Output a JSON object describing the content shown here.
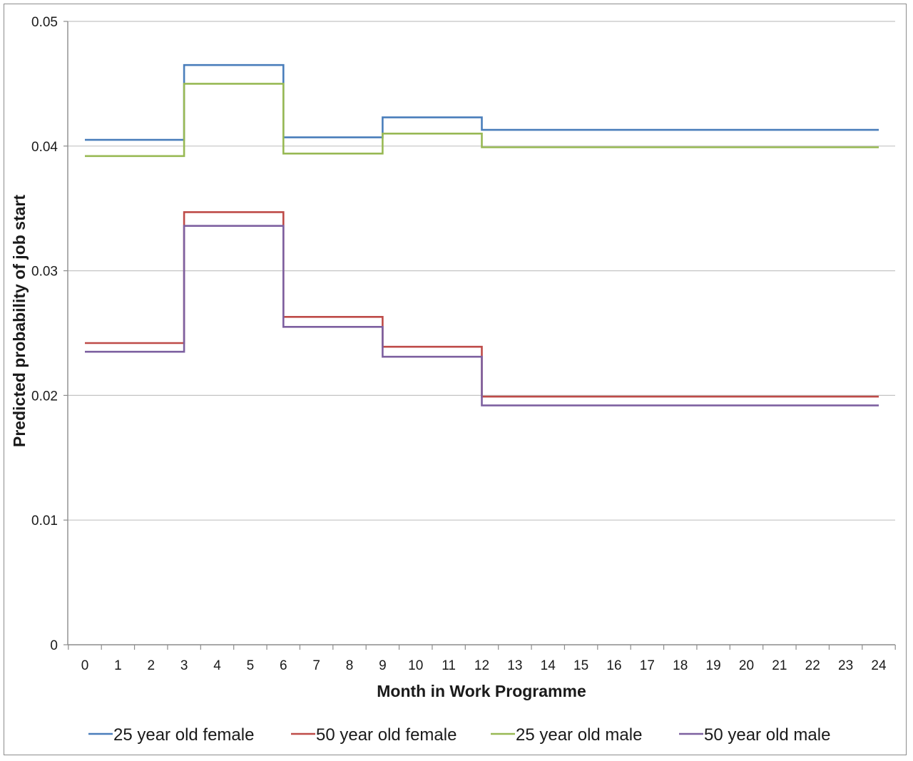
{
  "chart_data": {
    "type": "line",
    "step": true,
    "title": "",
    "xlabel": "Month in Work Programme",
    "ylabel": "Predicted probability of job start",
    "x_ticks": [
      "0",
      "1",
      "2",
      "3",
      "4",
      "5",
      "6",
      "7",
      "8",
      "9",
      "10",
      "11",
      "12",
      "13",
      "14",
      "15",
      "16",
      "17",
      "18",
      "19",
      "20",
      "21",
      "22",
      "23",
      "24"
    ],
    "xlim": [
      0,
      24
    ],
    "ylim": [
      0,
      0.05
    ],
    "y_ticks": [
      0,
      0.01,
      0.02,
      0.03,
      0.04,
      0.05
    ],
    "y_tick_labels": [
      "0",
      "0.01",
      "0.02",
      "0.03",
      "0.04",
      "0.05"
    ],
    "grid": "horizontal",
    "legend_position": "bottom",
    "series": [
      {
        "name": "25 year old female",
        "color": "#4a7ebb",
        "points": [
          [
            0,
            0.0405
          ],
          [
            3,
            0.0405
          ],
          [
            3,
            0.0465
          ],
          [
            6,
            0.0465
          ],
          [
            6,
            0.0407
          ],
          [
            9,
            0.0407
          ],
          [
            9,
            0.0423
          ],
          [
            12,
            0.0423
          ],
          [
            12,
            0.0413
          ],
          [
            24,
            0.0413
          ]
        ]
      },
      {
        "name": "50 year old female",
        "color": "#be4b48",
        "points": [
          [
            0,
            0.0242
          ],
          [
            3,
            0.0242
          ],
          [
            3,
            0.0347
          ],
          [
            6,
            0.0347
          ],
          [
            6,
            0.0263
          ],
          [
            9,
            0.0263
          ],
          [
            9,
            0.0239
          ],
          [
            12,
            0.0239
          ],
          [
            12,
            0.0199
          ],
          [
            24,
            0.0199
          ]
        ]
      },
      {
        "name": "25 year old male",
        "color": "#98b954",
        "points": [
          [
            0,
            0.0392
          ],
          [
            3,
            0.0392
          ],
          [
            3,
            0.045
          ],
          [
            6,
            0.045
          ],
          [
            6,
            0.0394
          ],
          [
            9,
            0.0394
          ],
          [
            9,
            0.041
          ],
          [
            12,
            0.041
          ],
          [
            12,
            0.0399
          ],
          [
            24,
            0.0399
          ]
        ]
      },
      {
        "name": "50 year old male",
        "color": "#7d60a0",
        "points": [
          [
            0,
            0.0235
          ],
          [
            3,
            0.0235
          ],
          [
            3,
            0.0336
          ],
          [
            6,
            0.0336
          ],
          [
            6,
            0.0255
          ],
          [
            9,
            0.0255
          ],
          [
            9,
            0.0231
          ],
          [
            12,
            0.0231
          ],
          [
            12,
            0.0192
          ],
          [
            24,
            0.0192
          ]
        ]
      }
    ]
  }
}
